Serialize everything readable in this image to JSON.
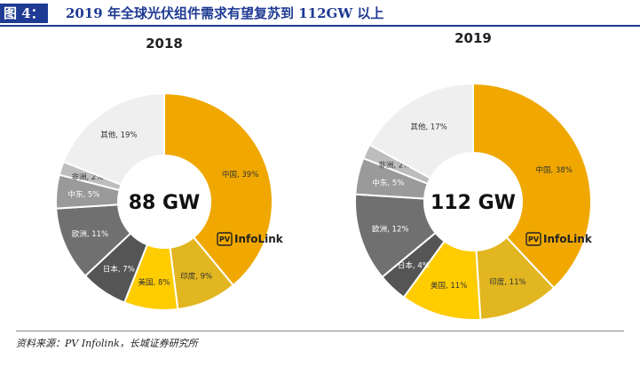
{
  "header": {
    "tag": "图 4：",
    "title": "2019 年全球光伏组件需求有望复苏到 112GW 以上"
  },
  "watermark": {
    "box": "PV",
    "text": "InfoLink"
  },
  "source": "资料来源：PV Infolink，长城证券研究所",
  "colors": {
    "china": "#F0A800",
    "india": "#E2B620",
    "usa": "#FFCC00",
    "japan": "#555555",
    "europe": "#707070",
    "middle_east": "#9A9A9A",
    "africa": "#BDBDBD",
    "other": "#EFEFEF",
    "accent": "#1F3A93"
  },
  "chart_data": [
    {
      "type": "pie",
      "title": "2018",
      "center_label": "88 GW",
      "slices": [
        {
          "label": "中国",
          "value": 39,
          "text": "中国, 39%",
          "color_key": "china"
        },
        {
          "label": "印度",
          "value": 9,
          "text": "印度, 9%",
          "color_key": "india"
        },
        {
          "label": "美国",
          "value": 8,
          "text": "美国, 8%",
          "color_key": "usa"
        },
        {
          "label": "日本",
          "value": 7,
          "text": "日本, 7%",
          "color_key": "japan"
        },
        {
          "label": "欧洲",
          "value": 11,
          "text": "欧洲, 11%",
          "color_key": "europe"
        },
        {
          "label": "中东",
          "value": 5,
          "text": "中东, 5%",
          "color_key": "middle_east"
        },
        {
          "label": "非洲",
          "value": 2,
          "text": "非洲, 2%",
          "color_key": "africa"
        },
        {
          "label": "其他",
          "value": 19,
          "text": "其他, 19%",
          "color_key": "other"
        }
      ]
    },
    {
      "type": "pie",
      "title": "2019",
      "center_label": "112 GW",
      "slices": [
        {
          "label": "中国",
          "value": 38,
          "text": "中国, 38%",
          "color_key": "china"
        },
        {
          "label": "印度",
          "value": 11,
          "text": "印度, 11%",
          "color_key": "india"
        },
        {
          "label": "美国",
          "value": 11,
          "text": "美国, 11%",
          "color_key": "usa"
        },
        {
          "label": "日本",
          "value": 4,
          "text": "日本, 4%",
          "color_key": "japan"
        },
        {
          "label": "欧洲",
          "value": 12,
          "text": "欧洲, 12%",
          "color_key": "europe"
        },
        {
          "label": "中东",
          "value": 5,
          "text": "中东, 5%",
          "color_key": "middle_east"
        },
        {
          "label": "非洲",
          "value": 2,
          "text": "非洲, 2%",
          "color_key": "africa"
        },
        {
          "label": "其他",
          "value": 17,
          "text": "其他, 17%",
          "color_key": "other"
        }
      ]
    }
  ]
}
